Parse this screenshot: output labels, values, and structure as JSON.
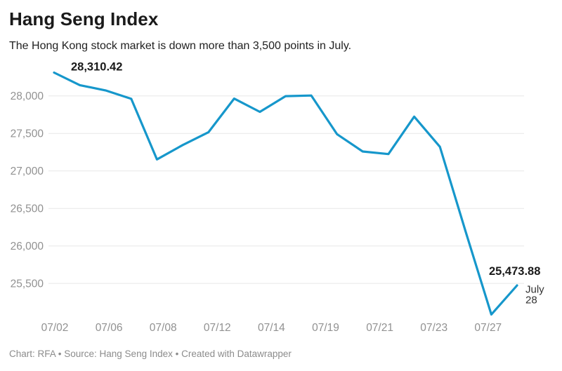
{
  "header": {
    "title": "Hang Seng Index",
    "subtitle": "The Hong Kong stock market is down more than 3,500 points in July."
  },
  "chart_data": {
    "type": "line",
    "title": "Hang Seng Index",
    "x": [
      "07/02",
      "07/05",
      "07/06",
      "07/07",
      "07/08",
      "07/09",
      "07/12",
      "07/13",
      "07/14",
      "07/15",
      "07/16",
      "07/19",
      "07/20",
      "07/21",
      "07/22",
      "07/23",
      "07/26",
      "07/27",
      "07/28"
    ],
    "values": [
      28310.42,
      28143.5,
      28072.86,
      27960.62,
      27153.13,
      27344.54,
      27515.24,
      27963.41,
      27787.46,
      27996.27,
      28004.68,
      27489.78,
      27259.25,
      27224.58,
      27723.84,
      27321.98,
      26192.32,
      25086.43,
      25473.88
    ],
    "x_tick_labels": [
      "07/02",
      "07/06",
      "07/08",
      "07/12",
      "07/14",
      "07/19",
      "07/21",
      "07/23",
      "07/27"
    ],
    "y_ticks": [
      28000,
      27500,
      27000,
      26500,
      26000,
      25500
    ],
    "y_tick_labels": [
      "28,000",
      "27,500",
      "27,000",
      "26,500",
      "26,000",
      "25,500"
    ],
    "ylim": [
      25025,
      28390
    ],
    "grid": "horizontal-only",
    "legend": "none",
    "first_point_label": "28,310.42",
    "last_point_label": "25,473.88",
    "last_point_date_line1": "July",
    "last_point_date_line2": "28"
  },
  "footer": {
    "text": "Chart: RFA • Source: Hang Seng Index • Created with Datawrapper"
  },
  "colors": {
    "background": "#ffffff",
    "line": "#1697cb",
    "gridline": "#e7e7e7",
    "tick_label": "#919191",
    "title": "#1a1a1a",
    "subtitle": "#222222",
    "annotation": "#1a1a1a",
    "date_label": "#333333",
    "footer": "#8c8c8c"
  }
}
